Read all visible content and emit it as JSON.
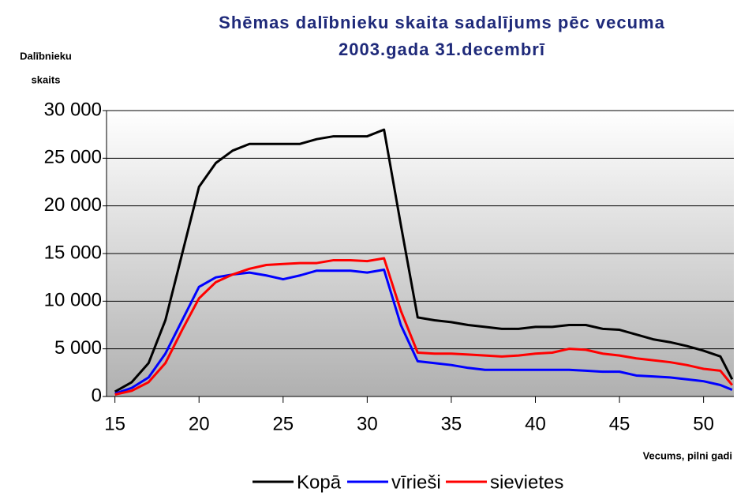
{
  "chart_data": {
    "type": "line",
    "title": [
      "Shēmas dalībnieku skaita sadalījums pēc vecuma",
      "2003.gada 31.decembrī"
    ],
    "y_label": [
      "Dalībnieku",
      "skaits"
    ],
    "x_label": "Vecums, pilni gadi",
    "x": [
      15,
      16,
      17,
      18,
      19,
      20,
      21,
      22,
      23,
      24,
      25,
      26,
      27,
      28,
      29,
      30,
      31,
      32,
      33,
      34,
      35,
      36,
      37,
      38,
      39,
      40,
      41,
      42,
      43,
      44,
      45,
      46,
      47,
      48,
      49,
      50,
      51,
      51.7
    ],
    "series": [
      {
        "name": "Kopā",
        "color": "#000000",
        "values": [
          500,
          1500,
          3500,
          8000,
          15000,
          22000,
          24500,
          25800,
          26500,
          26500,
          26500,
          26500,
          27000,
          27300,
          27300,
          27300,
          28000,
          18000,
          8300,
          8000,
          7800,
          7500,
          7300,
          7100,
          7100,
          7300,
          7300,
          7500,
          7500,
          7100,
          7000,
          6500,
          6000,
          5700,
          5300,
          4800,
          4200,
          1800
        ]
      },
      {
        "name": "vīrieši",
        "color": "#0000ff",
        "values": [
          300,
          900,
          2000,
          4500,
          8000,
          11500,
          12500,
          12800,
          13000,
          12700,
          12300,
          12700,
          13200,
          13200,
          13200,
          13000,
          13300,
          7500,
          3700,
          3500,
          3300,
          3000,
          2800,
          2800,
          2800,
          2800,
          2800,
          2800,
          2700,
          2600,
          2600,
          2200,
          2100,
          2000,
          1800,
          1600,
          1200,
          700
        ]
      },
      {
        "name": "sievietes",
        "color": "#ff0000",
        "values": [
          200,
          600,
          1500,
          3500,
          7000,
          10300,
          12000,
          12800,
          13400,
          13800,
          13900,
          14000,
          14000,
          14300,
          14300,
          14200,
          14500,
          9000,
          4600,
          4500,
          4500,
          4400,
          4300,
          4200,
          4300,
          4500,
          4600,
          5000,
          4900,
          4500,
          4300,
          4000,
          3800,
          3600,
          3300,
          2900,
          2700,
          1200
        ]
      }
    ],
    "xlim": [
      14.5,
      51.8
    ],
    "xticks": [
      15,
      20,
      25,
      30,
      35,
      40,
      45,
      50
    ],
    "ylim": [
      0,
      30000
    ],
    "yticks": [
      0,
      {
        "value": 5000,
        "label": "5 000"
      },
      {
        "value": 10000,
        "label": "10 000"
      },
      {
        "value": 15000,
        "label": "15 000"
      },
      {
        "value": 20000,
        "label": "20 000"
      },
      {
        "value": 25000,
        "label": "25 000"
      },
      {
        "value": 30000,
        "label": "30 000"
      }
    ],
    "grid": true,
    "legend": "bottom"
  }
}
